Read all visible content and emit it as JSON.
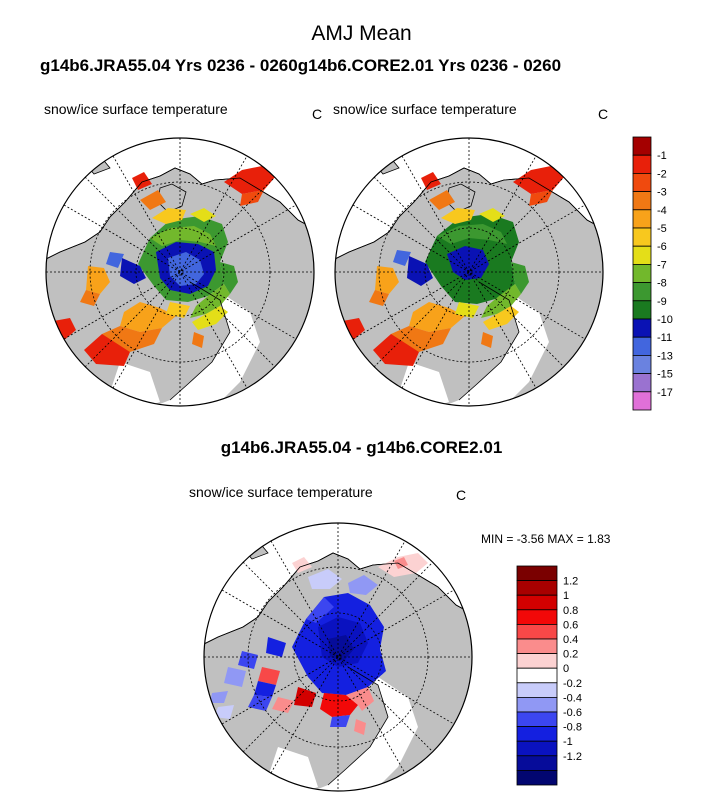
{
  "title": "AMJ Mean",
  "subtitle": "g14b6.JRA55.04  Yrs 0236 - 0260g14b6.CORE2.01  Yrs 0236 - 0260",
  "panels": [
    {
      "label": "snow/ice surface temperature",
      "units": "C"
    },
    {
      "label": "snow/ice surface temperature",
      "units": "C"
    }
  ],
  "diff": {
    "title": "g14b6.JRA55.04 - g14b6.CORE2.01",
    "label": "snow/ice surface temperature",
    "units": "C",
    "min_label": "MIN =",
    "min_value": "-3.56",
    "max_label": "MAX =",
    "max_value": "1.83"
  },
  "chart_data": [
    {
      "type": "heatmap",
      "title": "snow/ice surface temperature",
      "units": "C",
      "legend_ticks": [
        "-1",
        "-2",
        "-3",
        "-4",
        "-5",
        "-6",
        "-7",
        "-8",
        "-9",
        "-10",
        "-11",
        "-13",
        "-15",
        "-17"
      ],
      "legend_colors": [
        "#a40000",
        "#e8200a",
        "#f04a0e",
        "#f07814",
        "#f8a21a",
        "#f8c81e",
        "#e4de18",
        "#72b82c",
        "#3c9830",
        "#1a7a20",
        "#0a12b4",
        "#4266de",
        "#6a82e0",
        "#9a72d0",
        "#e070d8"
      ]
    },
    {
      "type": "heatmap",
      "title": "snow/ice surface temperature",
      "units": "C",
      "legend_ticks": [
        "-1",
        "-2",
        "-3",
        "-4",
        "-5",
        "-6",
        "-7",
        "-8",
        "-9",
        "-10",
        "-11",
        "-13",
        "-15",
        "-17"
      ],
      "legend_colors": [
        "#a40000",
        "#e8200a",
        "#f04a0e",
        "#f07814",
        "#f8a21a",
        "#f8c81e",
        "#e4de18",
        "#72b82c",
        "#3c9830",
        "#1a7a20",
        "#0a12b4",
        "#4266de",
        "#6a82e0",
        "#9a72d0",
        "#e070d8"
      ]
    },
    {
      "type": "heatmap",
      "title": "g14b6.JRA55.04 - g14b6.CORE2.01",
      "units": "C",
      "min": -3.56,
      "max": 1.83,
      "legend_ticks": [
        "1.2",
        "1",
        "0.8",
        "0.6",
        "0.4",
        "0.2",
        "0",
        "-0.2",
        "-0.4",
        "-0.6",
        "-0.8",
        "-1",
        "-1.2"
      ],
      "legend_colors": [
        "#7a0000",
        "#a80000",
        "#d20000",
        "#f20808",
        "#f84848",
        "#fa8c8c",
        "#fcd2d2",
        "#ffffff",
        "#c8ccfa",
        "#9098f4",
        "#3c46f0",
        "#1420e0",
        "#0a12c0",
        "#060c9a",
        "#020670"
      ]
    }
  ]
}
